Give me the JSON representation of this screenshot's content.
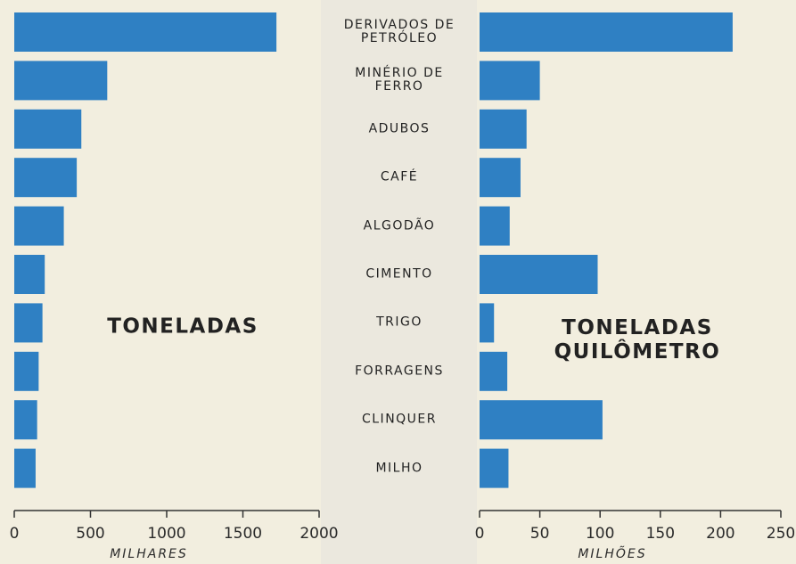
{
  "chart_data": [
    {
      "type": "barh",
      "categories": [
        "DERIVADOS DE\nPETRÓLEO",
        "MINÉRIO DE\nFERRO",
        "ADUBOS",
        "CAFÉ",
        "ALGODÃO",
        "CIMENTO",
        "TRIGO",
        "FORRAGENS",
        "CLINQUER",
        "MILHO"
      ],
      "values": [
        1720,
        610,
        440,
        410,
        325,
        200,
        185,
        160,
        150,
        140
      ],
      "color": "#2f80c3",
      "xlim": [
        0,
        2000
      ],
      "xticks": [
        0,
        500,
        1000,
        1500,
        2000
      ],
      "x_label": "MILHARES",
      "annotation": "TONELADAS"
    },
    {
      "type": "barh",
      "values": [
        210,
        50,
        39,
        34,
        25,
        98,
        12,
        23,
        102,
        24
      ],
      "color": "#2f80c3",
      "xlim": [
        0,
        250
      ],
      "xticks": [
        0,
        50,
        100,
        150,
        200,
        250
      ],
      "x_label": "MILHÕES",
      "annotation": "TONELADAS\nQUILÔMETRO"
    }
  ]
}
